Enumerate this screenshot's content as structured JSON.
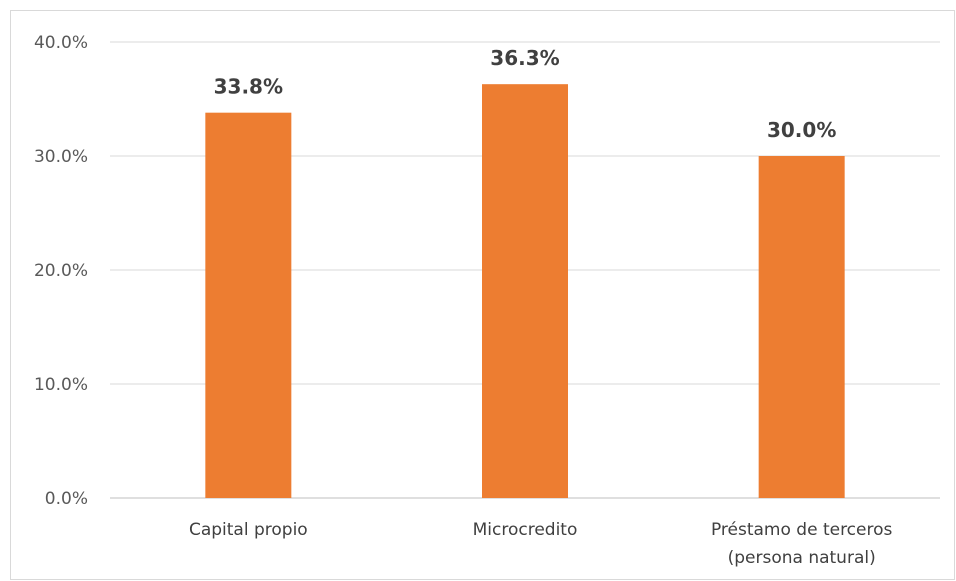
{
  "chart_data": {
    "type": "bar",
    "categories": [
      [
        "Capital propio"
      ],
      [
        "Microcredito"
      ],
      [
        "Préstamo de terceros",
        "(persona natural)"
      ]
    ],
    "values": [
      33.8,
      36.3,
      30.0
    ],
    "value_labels": [
      "33.8%",
      "36.3%",
      "30.0%"
    ],
    "y_ticks": [
      {
        "value": 0,
        "label": "0.0%"
      },
      {
        "value": 10,
        "label": "10.0%"
      },
      {
        "value": 20,
        "label": "20.0%"
      },
      {
        "value": 30,
        "label": "30.0%"
      },
      {
        "value": 40,
        "label": "40.0%"
      }
    ],
    "ylim": [
      0,
      40
    ],
    "title": "",
    "xlabel": "",
    "ylabel": "",
    "grid": true,
    "legend": "none",
    "colors": {
      "bar": "#ED7D31",
      "grid": "#d9d9d9",
      "axis": "#bfbfbf"
    }
  }
}
